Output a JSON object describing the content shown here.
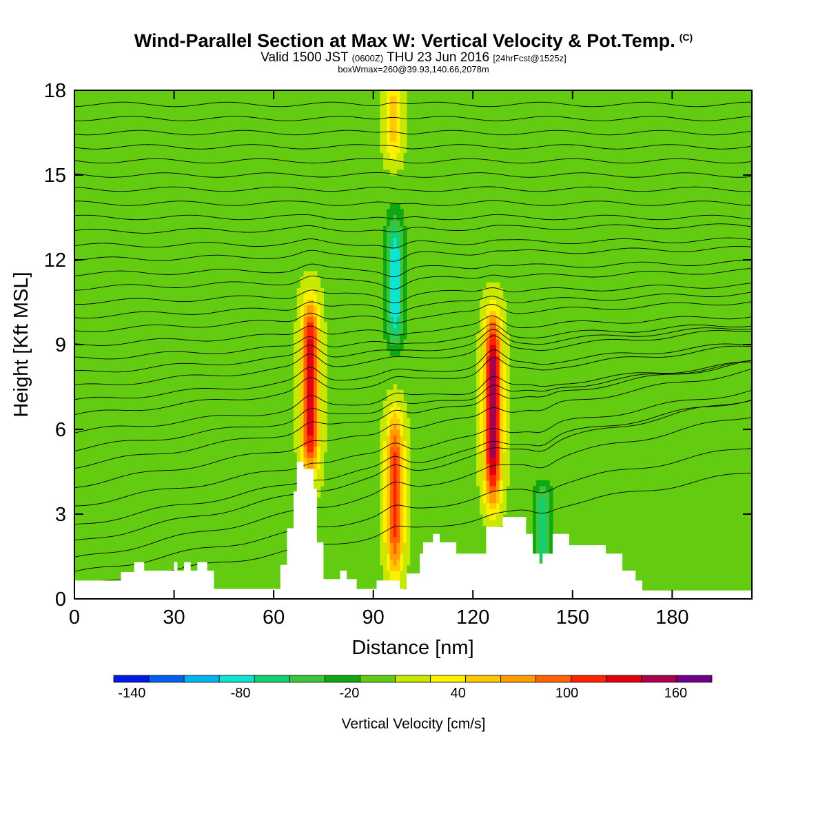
{
  "title": {
    "main": "Wind-Parallel Section at Max W: Vertical Velocity & Pot.Temp.",
    "copyright_mark": "(C)",
    "valid_prefix": "Valid 1500 JST",
    "valid_utc": "(0600Z)",
    "valid_date": "THU 23 Jun 2016",
    "forecast": "[24hrFcst@1525z]",
    "box_info": "boxWmax=260@39.93,140.66,2078m"
  },
  "chart_data": {
    "type": "heatmap",
    "xlabel": "Distance [nm]",
    "ylabel": "Height [Kft MSL]",
    "xlim": [
      0,
      204
    ],
    "ylim": [
      0,
      18
    ],
    "x_ticks": [
      "0",
      "30",
      "60",
      "90",
      "120",
      "150",
      "180"
    ],
    "x_tick_values": [
      0,
      30,
      60,
      90,
      120,
      150,
      180
    ],
    "y_ticks": [
      "0",
      "3",
      "6",
      "9",
      "12",
      "15",
      "18"
    ],
    "y_tick_values": [
      0,
      3,
      6,
      9,
      12,
      15,
      18
    ],
    "background_level": 0,
    "colorbar": {
      "title": "Vertical Velocity [cm/s]",
      "labels": [
        "-140",
        "-80",
        "-20",
        "40",
        "100",
        "160"
      ],
      "label_values": [
        -140,
        -80,
        -20,
        40,
        100,
        160
      ],
      "min": -150,
      "max": 180,
      "colors": [
        "#0018e8",
        "#0060f0",
        "#00b4f0",
        "#10e4d0",
        "#14d070",
        "#3cc43c",
        "#10a810",
        "#64cc10",
        "#c8e800",
        "#fff000",
        "#ffc800",
        "#ff9c00",
        "#ff6400",
        "#ff2400",
        "#e00010",
        "#a8004c",
        "#70008c"
      ]
    },
    "features": [
      {
        "type": "updraft",
        "x": 71,
        "z_low": 5,
        "z_high": 10,
        "peak": 140
      },
      {
        "type": "updraft",
        "x": 96.5,
        "z_low": 1.5,
        "z_high": 6,
        "peak": 110
      },
      {
        "type": "updraft",
        "x": 96,
        "z_low": 16,
        "z_high": 18,
        "peak": 50
      },
      {
        "type": "updraft",
        "x": 126,
        "z_low": 4,
        "z_high": 9.5,
        "peak": 160
      },
      {
        "type": "downdraft",
        "x": 96.5,
        "z_low": 9.5,
        "z_high": 13,
        "peak": -90
      },
      {
        "type": "downdraft",
        "x": 141,
        "z_low": 1.5,
        "z_high": 3.5,
        "peak": -70
      }
    ],
    "terrain": {
      "x": [
        0,
        14,
        18,
        21,
        25,
        30,
        31,
        33,
        35,
        37,
        40,
        42,
        60,
        62,
        64,
        66,
        67,
        68,
        69,
        72,
        73,
        75,
        79,
        80,
        82,
        85,
        86,
        89,
        91,
        95,
        98,
        100,
        104,
        105,
        108,
        110,
        115,
        120,
        124,
        127,
        129,
        133,
        136,
        138,
        140,
        141,
        144,
        148,
        149,
        157,
        160,
        165,
        169,
        171,
        204
      ],
      "z": [
        0.65,
        0.95,
        1.3,
        1.0,
        1.0,
        1.3,
        1.0,
        1.3,
        1.0,
        1.3,
        1.0,
        0.35,
        0.35,
        1.2,
        2.5,
        3.8,
        4.85,
        4.85,
        4.6,
        3.9,
        2.0,
        0.7,
        0.7,
        1.0,
        0.7,
        0.35,
        0.35,
        0.35,
        0.65,
        0.65,
        0.35,
        0.9,
        1.6,
        2.0,
        2.3,
        2.0,
        1.6,
        1.6,
        2.55,
        2.55,
        2.9,
        2.9,
        2.3,
        1.6,
        1.25,
        1.6,
        2.3,
        2.3,
        1.9,
        1.9,
        1.6,
        1.0,
        0.65,
        0.3,
        0.3
      ]
    },
    "isentropes": [
      {
        "z0": 0.4,
        "slope": 0.002
      },
      {
        "z0": 0.9,
        "slope": 0.0022
      },
      {
        "z0": 1.4,
        "slope": 0.0025
      },
      {
        "z0": 2.0,
        "slope": 0.0025
      },
      {
        "z0": 2.6,
        "slope": 0.0022
      },
      {
        "z0": 3.3,
        "slope": 0.002
      },
      {
        "z0": 4.0,
        "slope": 0.002
      },
      {
        "z0": 4.7,
        "slope": 0.0018
      },
      {
        "z0": 5.3,
        "slope": 0.0015
      },
      {
        "z0": 5.9,
        "slope": 0.0012
      },
      {
        "z0": 6.5,
        "slope": 0.0012
      },
      {
        "z0": 7.0,
        "slope": 0.001
      },
      {
        "z0": 7.5,
        "slope": 0.001
      },
      {
        "z0": 8.0,
        "slope": 0.0008
      },
      {
        "z0": 8.5,
        "slope": 0.0006
      },
      {
        "z0": 9.0,
        "slope": 0.0005
      },
      {
        "z0": 9.5,
        "slope": 0.0005
      },
      {
        "z0": 10.0,
        "slope": 0.0004
      },
      {
        "z0": 10.5,
        "slope": 0.0003
      },
      {
        "z0": 11.0,
        "slope": 0.0003
      },
      {
        "z0": 11.5,
        "slope": 0.0002
      },
      {
        "z0": 12.0,
        "slope": 0.0002
      },
      {
        "z0": 12.5,
        "slope": 0.0001
      },
      {
        "z0": 13.0,
        "slope": 0.0001
      },
      {
        "z0": 13.5,
        "slope": 0.0
      },
      {
        "z0": 14.0,
        "slope": 0.0
      },
      {
        "z0": 14.5,
        "slope": 0.0
      },
      {
        "z0": 15.0,
        "slope": 0.0
      },
      {
        "z0": 15.5,
        "slope": 0.0
      },
      {
        "z0": 16.0,
        "slope": 0.0
      },
      {
        "z0": 16.5,
        "slope": 0.0
      },
      {
        "z0": 17.0,
        "slope": 0.0
      },
      {
        "z0": 17.5,
        "slope": 0.0
      }
    ]
  }
}
